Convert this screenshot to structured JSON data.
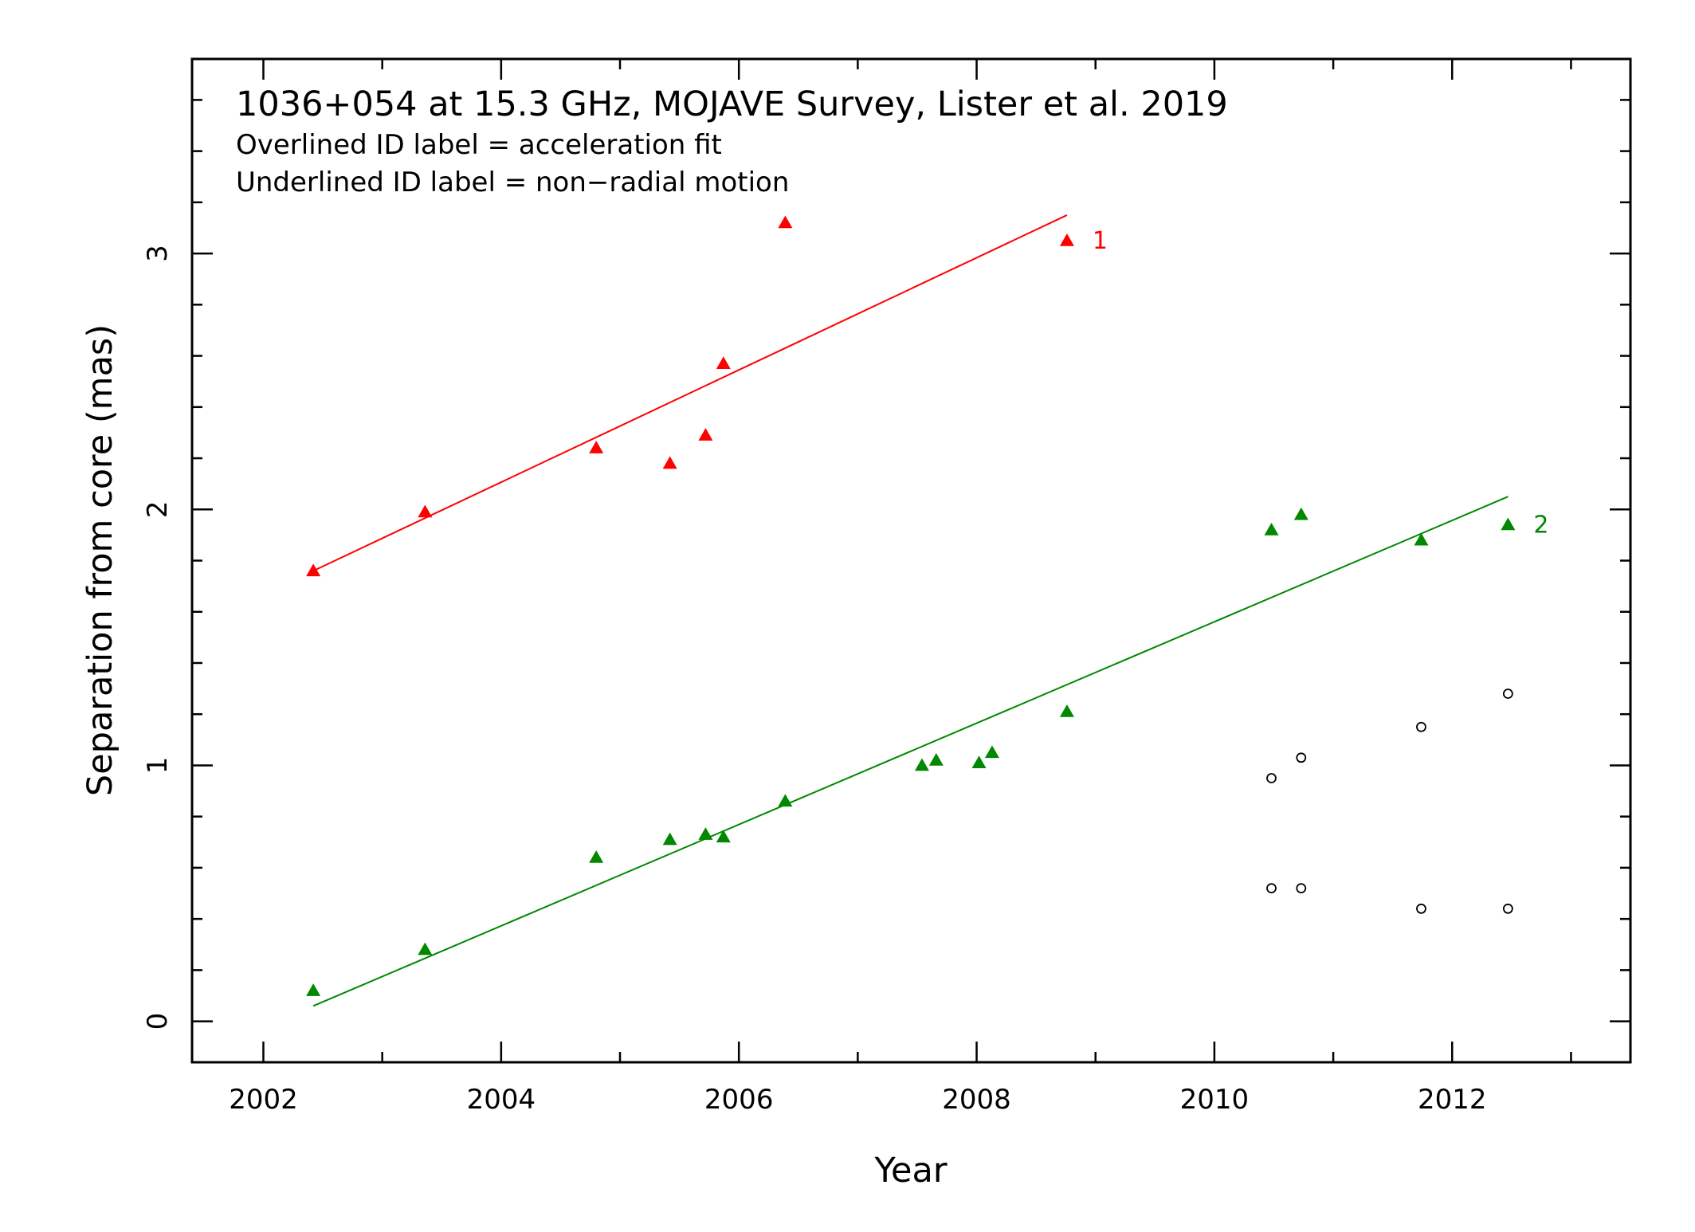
{
  "chart_data": {
    "type": "scatter",
    "title": "1036+054 at 15.3 GHz, MOJAVE Survey, Lister et al. 2019",
    "notes": [
      "Overlined ID label = acceleration fit",
      "Underlined ID label = non−radial motion"
    ],
    "xlabel": "Year",
    "ylabel": "Separation from core (mas)",
    "xlim": [
      2001.4,
      2013.5
    ],
    "ylim": [
      -0.16,
      3.76
    ],
    "x_major_ticks": [
      2002,
      2004,
      2006,
      2008,
      2010,
      2012
    ],
    "x_tick_labels": [
      "2002",
      "2004",
      "2006",
      "2008",
      "2010",
      "2012"
    ],
    "x_minor_ticks": [
      2003,
      2005,
      2007,
      2009,
      2011,
      2013
    ],
    "y_major_ticks": [
      0,
      1,
      2,
      3
    ],
    "y_tick_labels": [
      "0",
      "1",
      "2",
      "3"
    ],
    "y_minor_step": 0.2,
    "grid": false,
    "series": [
      {
        "name": "1",
        "color": "#ff0000",
        "marker": "triangle",
        "points": [
          {
            "x": 2002.42,
            "y": 1.76
          },
          {
            "x": 2003.36,
            "y": 1.99
          },
          {
            "x": 2004.8,
            "y": 2.24
          },
          {
            "x": 2005.42,
            "y": 2.18
          },
          {
            "x": 2005.72,
            "y": 2.29
          },
          {
            "x": 2005.87,
            "y": 2.57
          },
          {
            "x": 2006.39,
            "y": 3.12
          },
          {
            "x": 2008.76,
            "y": 3.05
          }
        ],
        "fit": {
          "x": [
            2002.42,
            2008.76
          ],
          "y": [
            1.76,
            3.15
          ]
        }
      },
      {
        "name": "2",
        "color": "#008800",
        "marker": "triangle",
        "points": [
          {
            "x": 2002.42,
            "y": 0.12
          },
          {
            "x": 2003.36,
            "y": 0.28
          },
          {
            "x": 2004.8,
            "y": 0.64
          },
          {
            "x": 2005.42,
            "y": 0.71
          },
          {
            "x": 2005.72,
            "y": 0.73
          },
          {
            "x": 2005.87,
            "y": 0.72
          },
          {
            "x": 2006.39,
            "y": 0.86
          },
          {
            "x": 2007.54,
            "y": 1.0
          },
          {
            "x": 2007.66,
            "y": 1.02
          },
          {
            "x": 2008.02,
            "y": 1.01
          },
          {
            "x": 2008.13,
            "y": 1.05
          },
          {
            "x": 2008.76,
            "y": 1.21
          },
          {
            "x": 2010.48,
            "y": 1.92
          },
          {
            "x": 2010.73,
            "y": 1.98
          },
          {
            "x": 2011.74,
            "y": 1.88
          },
          {
            "x": 2012.47,
            "y": 1.94
          }
        ],
        "fit": {
          "x": [
            2002.42,
            2012.47
          ],
          "y": [
            0.06,
            2.05
          ]
        }
      },
      {
        "name": "",
        "color": "#000000",
        "marker": "open-circle",
        "points": [
          {
            "x": 2010.48,
            "y": 0.95
          },
          {
            "x": 2010.73,
            "y": 1.03
          },
          {
            "x": 2011.74,
            "y": 1.15
          },
          {
            "x": 2012.47,
            "y": 1.28
          },
          {
            "x": 2010.48,
            "y": 0.52
          },
          {
            "x": 2010.73,
            "y": 0.52
          },
          {
            "x": 2011.74,
            "y": 0.44
          },
          {
            "x": 2012.47,
            "y": 0.44
          }
        ]
      }
    ]
  }
}
